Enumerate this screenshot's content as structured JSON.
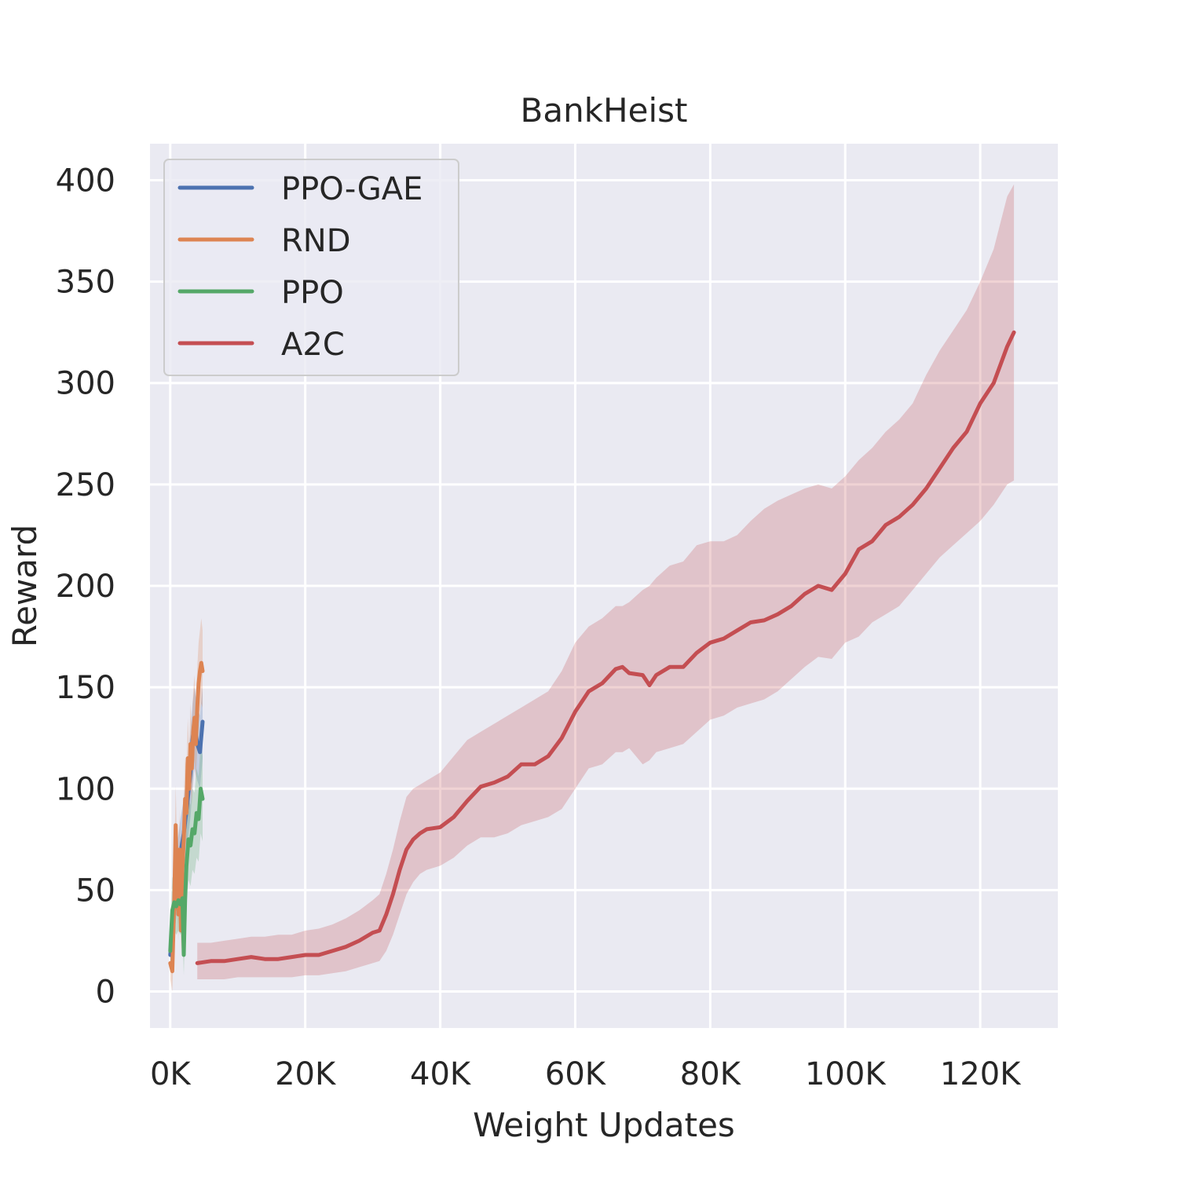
{
  "chart_data": {
    "type": "line",
    "title": "BankHeist",
    "xlabel": "Weight Updates",
    "ylabel": "Reward",
    "xlim": [
      -3000,
      131500
    ],
    "ylim": [
      -18,
      418
    ],
    "xticks": [
      0,
      20000,
      40000,
      60000,
      80000,
      100000,
      120000
    ],
    "xtick_labels": [
      "0K",
      "20K",
      "40K",
      "60K",
      "80K",
      "100K",
      "120K"
    ],
    "yticks": [
      0,
      50,
      100,
      150,
      200,
      250,
      300,
      350,
      400
    ],
    "ytick_labels": [
      "0",
      "50",
      "100",
      "150",
      "200",
      "250",
      "300",
      "350",
      "400"
    ],
    "grid": true,
    "legend_position": "top-left",
    "series": [
      {
        "name": "PPO-GAE",
        "color": "#4c72b0",
        "x": [
          0,
          500,
          1000,
          1500,
          2000,
          2500,
          3000,
          3300,
          3600,
          4000,
          4400,
          4800
        ],
        "y": [
          18,
          38,
          55,
          68,
          78,
          92,
          108,
          124,
          132,
          122,
          118,
          133
        ],
        "band_low": [
          10,
          25,
          40,
          50,
          60,
          72,
          86,
          100,
          110,
          104,
          100,
          115
        ],
        "band_high": [
          28,
          52,
          72,
          85,
          95,
          110,
          128,
          142,
          150,
          140,
          136,
          150
        ]
      },
      {
        "name": "RND",
        "color": "#dd8452",
        "x": [
          0,
          300,
          600,
          800,
          1000,
          1200,
          1400,
          1600,
          1800,
          2000,
          2200,
          2400,
          2600,
          2800,
          3000,
          3200,
          3400,
          3600,
          3800,
          4000,
          4200,
          4400,
          4600,
          4800
        ],
        "y": [
          14,
          10,
          45,
          82,
          55,
          38,
          70,
          30,
          60,
          75,
          95,
          88,
          115,
          100,
          122,
          110,
          128,
          135,
          122,
          140,
          152,
          158,
          162,
          158
        ],
        "band_low": [
          6,
          0,
          30,
          60,
          40,
          25,
          52,
          18,
          45,
          58,
          75,
          70,
          95,
          82,
          100,
          92,
          108,
          114,
          104,
          120,
          132,
          138,
          142,
          140
        ],
        "band_high": [
          24,
          22,
          62,
          102,
          72,
          52,
          90,
          44,
          78,
          94,
          115,
          108,
          135,
          120,
          142,
          130,
          148,
          156,
          142,
          160,
          172,
          178,
          184,
          178
        ]
      },
      {
        "name": "PPO",
        "color": "#55a868",
        "x": [
          0,
          300,
          600,
          900,
          1200,
          1500,
          1800,
          2000,
          2200,
          2400,
          2700,
          3000,
          3300,
          3600,
          3900,
          4200,
          4500,
          4800
        ],
        "y": [
          20,
          40,
          44,
          42,
          45,
          43,
          46,
          18,
          45,
          62,
          75,
          72,
          80,
          78,
          88,
          85,
          100,
          95
        ],
        "band_low": [
          10,
          25,
          30,
          28,
          30,
          28,
          30,
          8,
          30,
          45,
          55,
          52,
          60,
          58,
          66,
          64,
          78,
          74
        ],
        "band_high": [
          32,
          56,
          58,
          56,
          60,
          58,
          62,
          30,
          60,
          80,
          95,
          92,
          100,
          98,
          110,
          106,
          122,
          116
        ]
      },
      {
        "name": "A2C",
        "color": "#c44e52",
        "x": [
          4000,
          6000,
          8000,
          10000,
          12000,
          14000,
          16000,
          18000,
          20000,
          22000,
          24000,
          26000,
          28000,
          30000,
          31000,
          32000,
          33000,
          34000,
          35000,
          36000,
          37000,
          38000,
          40000,
          42000,
          44000,
          46000,
          48000,
          50000,
          52000,
          54000,
          56000,
          58000,
          60000,
          62000,
          64000,
          66000,
          67000,
          68000,
          70000,
          71000,
          72000,
          74000,
          76000,
          78000,
          80000,
          82000,
          84000,
          86000,
          88000,
          90000,
          92000,
          94000,
          96000,
          98000,
          100000,
          102000,
          104000,
          106000,
          108000,
          110000,
          112000,
          114000,
          116000,
          118000,
          120000,
          122000,
          124000,
          125000
        ],
        "y": [
          14,
          15,
          15,
          16,
          17,
          16,
          16,
          17,
          18,
          18,
          20,
          22,
          25,
          29,
          30,
          38,
          48,
          60,
          70,
          75,
          78,
          80,
          81,
          86,
          94,
          101,
          103,
          106,
          112,
          112,
          116,
          125,
          138,
          148,
          152,
          159,
          160,
          157,
          156,
          151,
          156,
          160,
          160,
          167,
          172,
          174,
          178,
          182,
          183,
          186,
          190,
          196,
          200,
          198,
          206,
          218,
          222,
          230,
          234,
          240,
          248,
          258,
          268,
          276,
          290,
          300,
          318,
          325
        ],
        "band_low": [
          6,
          6,
          6,
          7,
          7,
          7,
          7,
          7,
          8,
          8,
          9,
          10,
          12,
          14,
          15,
          20,
          28,
          38,
          48,
          54,
          58,
          60,
          62,
          66,
          72,
          76,
          76,
          78,
          82,
          84,
          86,
          90,
          100,
          110,
          112,
          118,
          118,
          120,
          112,
          114,
          118,
          120,
          122,
          128,
          134,
          136,
          140,
          142,
          144,
          148,
          154,
          160,
          165,
          164,
          172,
          175,
          182,
          186,
          190,
          198,
          206,
          214,
          220,
          226,
          232,
          240,
          250,
          252
        ],
        "band_high": [
          24,
          24,
          25,
          26,
          27,
          27,
          28,
          28,
          30,
          31,
          33,
          36,
          40,
          45,
          48,
          58,
          70,
          84,
          96,
          100,
          102,
          104,
          108,
          116,
          124,
          128,
          132,
          136,
          140,
          144,
          148,
          158,
          172,
          180,
          184,
          190,
          190,
          192,
          198,
          200,
          204,
          210,
          212,
          220,
          222,
          222,
          225,
          232,
          238,
          242,
          245,
          248,
          250,
          248,
          254,
          262,
          268,
          276,
          282,
          290,
          304,
          316,
          326,
          336,
          350,
          366,
          392,
          398
        ]
      }
    ]
  }
}
